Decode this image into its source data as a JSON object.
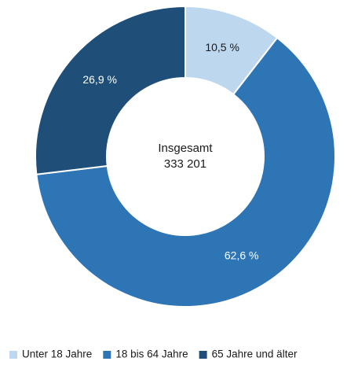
{
  "chart_data": {
    "type": "donut",
    "categories": [
      "Unter 18 Jahre",
      "18 bis 64 Jahre",
      "65 Jahre und älter"
    ],
    "values": [
      10.5,
      62.6,
      26.9
    ],
    "value_labels": [
      "10,5 %",
      "62,6 %",
      "26,9 %"
    ],
    "colors": [
      "#bdd7ee",
      "#2e75b6",
      "#1f4e79"
    ],
    "label_colors": [
      "#1a1a1a",
      "#ffffff",
      "#ffffff"
    ],
    "center_text": [
      "Insgesamt",
      "333 201"
    ],
    "legend": "bottom"
  }
}
